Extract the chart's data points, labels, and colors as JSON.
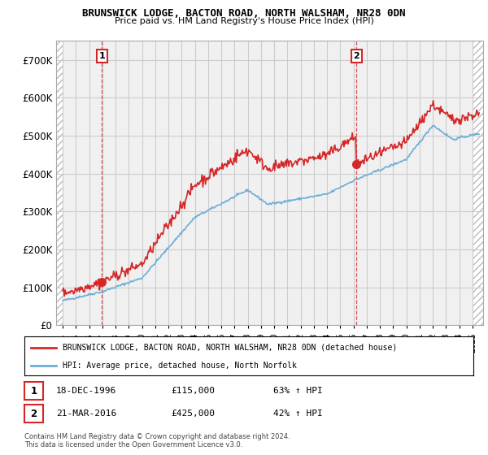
{
  "title1": "BRUNSWICK LODGE, BACTON ROAD, NORTH WALSHAM, NR28 0DN",
  "title2": "Price paid vs. HM Land Registry's House Price Index (HPI)",
  "ylabel_ticks": [
    "£0",
    "£100K",
    "£200K",
    "£300K",
    "£400K",
    "£500K",
    "£600K",
    "£700K"
  ],
  "ytick_values": [
    0,
    100000,
    200000,
    300000,
    400000,
    500000,
    600000,
    700000
  ],
  "ylim": [
    0,
    750000
  ],
  "xlim_start": 1993.5,
  "xlim_end": 2025.8,
  "sale1_year": 1996.96,
  "sale1_price": 115000,
  "sale1_label": "1",
  "sale1_date": "18-DEC-1996",
  "sale1_price_str": "£115,000",
  "sale1_pct": "63% ↑ HPI",
  "sale2_year": 2016.22,
  "sale2_price": 425000,
  "sale2_label": "2",
  "sale2_date": "21-MAR-2016",
  "sale2_price_str": "£425,000",
  "sale2_pct": "42% ↑ HPI",
  "hpi_color": "#6baed6",
  "price_color": "#d62728",
  "sale_dot_color": "#d62728",
  "grid_color": "#cccccc",
  "legend_line1": "BRUNSWICK LODGE, BACTON ROAD, NORTH WALSHAM, NR28 0DN (detached house)",
  "legend_line2": "HPI: Average price, detached house, North Norfolk",
  "footnote1": "Contains HM Land Registry data © Crown copyright and database right 2024.",
  "footnote2": "This data is licensed under the Open Government Licence v3.0.",
  "background_color": "#ffffff",
  "plot_bg_color": "#f0f0f0"
}
